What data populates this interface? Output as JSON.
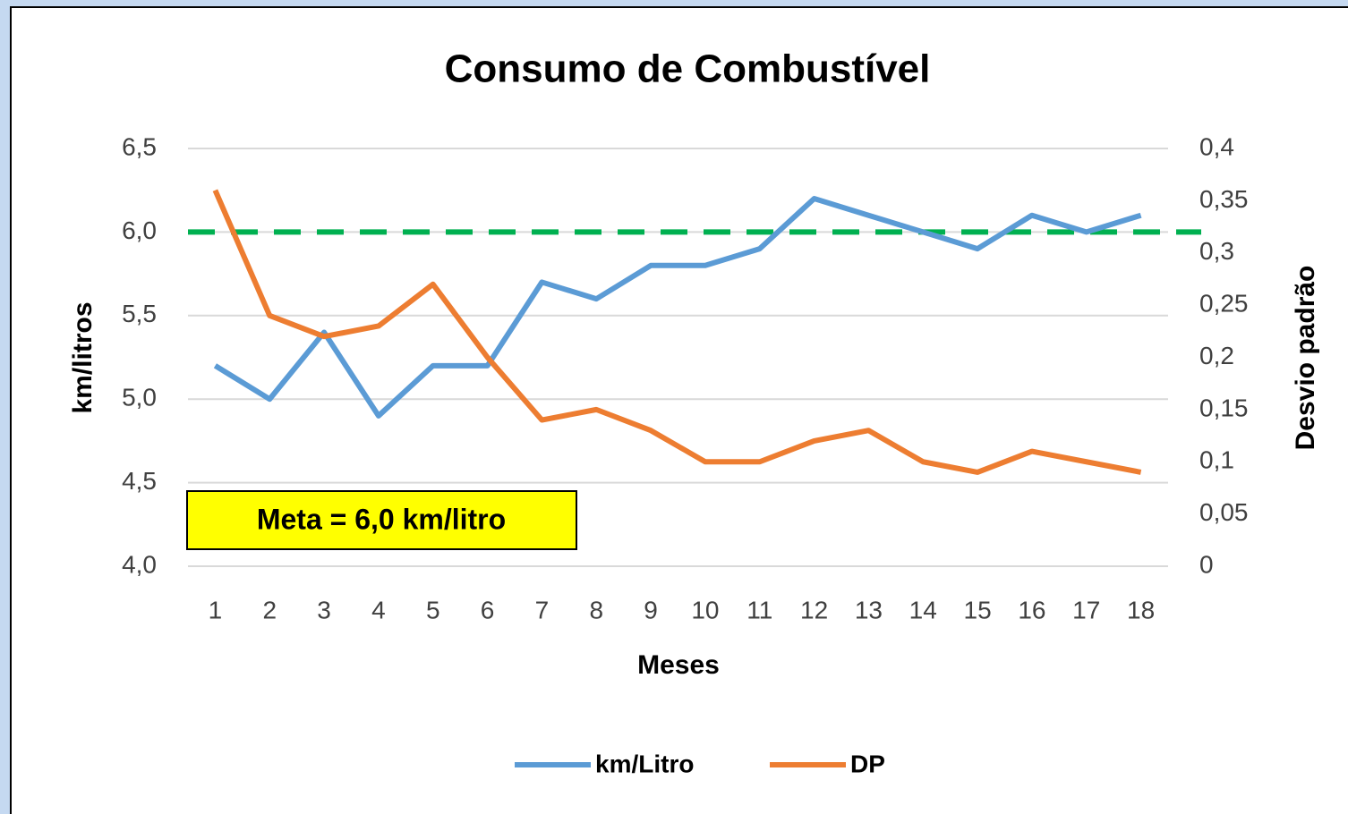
{
  "chart_data": {
    "type": "line",
    "title": "Consumo de Combustível",
    "x_label": "Meses",
    "y_label": "km/litros",
    "y2_label": "Desvio padrão",
    "categories": [
      "1",
      "2",
      "3",
      "4",
      "5",
      "6",
      "7",
      "8",
      "9",
      "10",
      "11",
      "12",
      "13",
      "14",
      "15",
      "16",
      "17",
      "18"
    ],
    "series": [
      {
        "name": "km/Litro",
        "color": "#5b9bd5",
        "values": [
          5.2,
          5.0,
          5.4,
          4.9,
          5.2,
          5.2,
          5.7,
          5.6,
          5.8,
          5.8,
          5.9,
          6.2,
          6.1,
          6.0,
          5.9,
          6.1,
          6.0,
          6.1
        ]
      },
      {
        "name": "DP",
        "color": "#ed7d31",
        "axis": "y2",
        "values": [
          0.36,
          0.24,
          0.22,
          0.23,
          0.27,
          0.2,
          0.14,
          0.15,
          0.13,
          0.1,
          0.1,
          0.12,
          0.13,
          0.1,
          0.09,
          0.11,
          0.1,
          0.09
        ]
      }
    ],
    "target_line": {
      "value": 6,
      "color": "#00b050"
    },
    "annotation": "Meta = 6,0 km/litro",
    "ylim": [
      4,
      6.5
    ],
    "yticks": [
      {
        "value": 4,
        "label": "4,0"
      },
      {
        "value": 4.5,
        "label": "4,5"
      },
      {
        "value": 5,
        "label": "5,0"
      },
      {
        "value": 5.5,
        "label": "5,5"
      },
      {
        "value": 6,
        "label": "6,0"
      },
      {
        "value": 6.5,
        "label": "6,5"
      }
    ],
    "y2lim": [
      0,
      0.4
    ],
    "y2ticks": [
      0,
      {
        "value": 0.05,
        "label": "0,05"
      },
      {
        "value": 0.1,
        "label": "0,1"
      },
      {
        "value": 0.15,
        "label": "0,15"
      },
      {
        "value": 0.2,
        "label": "0,2"
      },
      {
        "value": 0.25,
        "label": "0,25"
      },
      {
        "value": 0.3,
        "label": "0,3"
      },
      {
        "value": 0.35,
        "label": "0,35"
      },
      {
        "value": 0.4,
        "label": "0,4"
      }
    ],
    "grid": true,
    "legend": "bottom"
  }
}
